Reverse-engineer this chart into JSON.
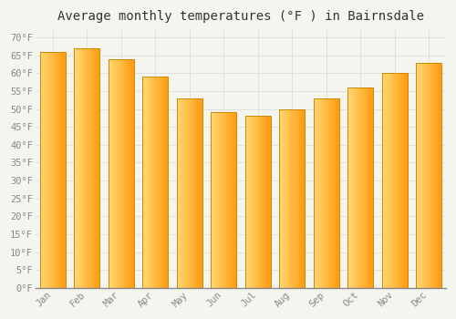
{
  "title": "Average monthly temperatures (°F ) in Bairnsdale",
  "months": [
    "Jan",
    "Feb",
    "Mar",
    "Apr",
    "May",
    "Jun",
    "Jul",
    "Aug",
    "Sep",
    "Oct",
    "Nov",
    "Dec"
  ],
  "values": [
    66,
    67,
    64,
    59,
    53,
    49,
    48,
    50,
    53,
    56,
    60,
    63
  ],
  "bar_color_left": "#FFD080",
  "bar_color_right": "#FFA020",
  "bar_edge_color": "#CC8800",
  "background_color": "#F5F5F0",
  "plot_bg_color": "#F5F5F0",
  "grid_color": "#DDDDDD",
  "yticks": [
    0,
    5,
    10,
    15,
    20,
    25,
    30,
    35,
    40,
    45,
    50,
    55,
    60,
    65,
    70
  ],
  "ylim": [
    0,
    72
  ],
  "ylabel_suffix": "°F",
  "title_fontsize": 10,
  "tick_fontsize": 7.5,
  "tick_color": "#888888",
  "title_color": "#333333",
  "font_family": "monospace",
  "bar_width": 0.75
}
